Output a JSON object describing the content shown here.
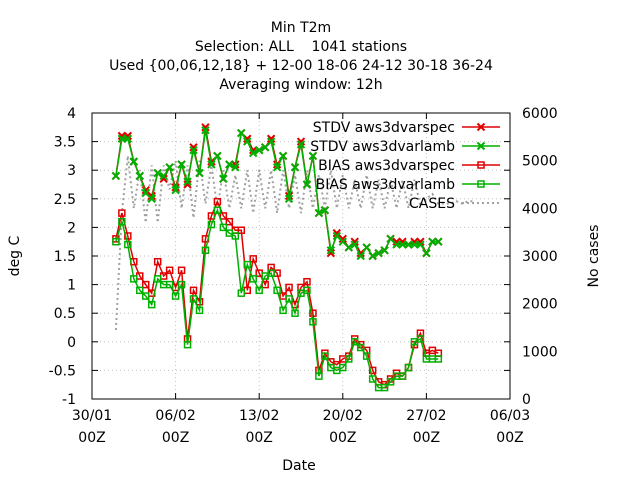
{
  "chart_data": {
    "type": "line",
    "title_lines": [
      "Min T2m",
      "Selection: ALL    1041 stations",
      "Used {00,06,12,18} + 12-00 18-06 24-12 30-18 36-24",
      "Averaging window: 12h"
    ],
    "xlabel": "Date",
    "ylabel": "deg C",
    "y2label": "No cases",
    "x_ticks": [
      {
        "day": 0,
        "line1": "30/01",
        "line2": "00Z"
      },
      {
        "day": 7,
        "line1": "06/02",
        "line2": "00Z"
      },
      {
        "day": 14,
        "line1": "13/02",
        "line2": "00Z"
      },
      {
        "day": 21,
        "line1": "20/02",
        "line2": "00Z"
      },
      {
        "day": 28,
        "line1": "27/02",
        "line2": "00Z"
      },
      {
        "day": 35,
        "line1": "06/03",
        "line2": "00Z"
      }
    ],
    "xlim": [
      0,
      35
    ],
    "ylim": [
      -1,
      4
    ],
    "y_ticks": [
      "-1",
      "-0.5",
      "0",
      "0.5",
      "1",
      "1.5",
      "2",
      "2.5",
      "3",
      "3.5",
      "4"
    ],
    "y2lim": [
      0,
      6000
    ],
    "y2_ticks": [
      "0",
      "1000",
      "2000",
      "3000",
      "4000",
      "5000",
      "6000"
    ],
    "grid": true,
    "legend_position": "top-right",
    "series": [
      {
        "name": "STDV aws3dvarspec",
        "color": "#e00000",
        "marker": "x",
        "axis": "y",
        "x": [
          2.0,
          2.5,
          3.0,
          3.5,
          4.0,
          4.5,
          5.0,
          5.5,
          6.0,
          6.5,
          7.0,
          7.5,
          8.0,
          8.5,
          9.0,
          9.5,
          10.0,
          10.5,
          11.0,
          11.5,
          12.0,
          12.5,
          13.0,
          13.5,
          14.0,
          14.5,
          15.0,
          15.5,
          16.0,
          16.5,
          17.0,
          17.5,
          18.0,
          18.5,
          19.0,
          19.5,
          20.0,
          20.5,
          21.0,
          21.5,
          22.0,
          22.5,
          23.0,
          23.5,
          24.0,
          24.5,
          25.0,
          25.5,
          26.0,
          26.5,
          27.0,
          27.5,
          28.0,
          28.5,
          29.0
        ],
        "y": [
          2.9,
          3.6,
          3.6,
          3.15,
          2.9,
          2.65,
          2.55,
          2.95,
          2.85,
          3.05,
          2.7,
          3.1,
          2.75,
          3.4,
          2.95,
          3.75,
          3.15,
          3.25,
          2.85,
          3.1,
          3.1,
          3.65,
          3.55,
          3.35,
          3.35,
          3.4,
          3.55,
          3.1,
          3.25,
          2.55,
          3.05,
          3.5,
          2.75,
          3.25,
          2.25,
          2.3,
          1.55,
          1.9,
          1.8,
          1.65,
          1.75,
          1.55,
          1.65,
          1.5,
          1.55,
          1.6,
          1.8,
          1.75,
          1.75,
          1.7,
          1.75,
          1.75,
          1.55,
          1.75,
          1.75
        ]
      },
      {
        "name": "STDV aws3dvarlamb",
        "color": "#00b000",
        "marker": "x",
        "axis": "y",
        "x": [
          2.0,
          2.5,
          3.0,
          3.5,
          4.0,
          4.5,
          5.0,
          5.5,
          6.0,
          6.5,
          7.0,
          7.5,
          8.0,
          8.5,
          9.0,
          9.5,
          10.0,
          10.5,
          11.0,
          11.5,
          12.0,
          12.5,
          13.0,
          13.5,
          14.0,
          14.5,
          15.0,
          15.5,
          16.0,
          16.5,
          17.0,
          17.5,
          18.0,
          18.5,
          19.0,
          19.5,
          20.0,
          20.5,
          21.0,
          21.5,
          22.0,
          22.5,
          23.0,
          23.5,
          24.0,
          24.5,
          25.0,
          25.5,
          26.0,
          26.5,
          27.0,
          27.5,
          28.0,
          28.5,
          29.0
        ],
        "y": [
          2.9,
          3.55,
          3.55,
          3.15,
          2.9,
          2.6,
          2.5,
          2.95,
          2.9,
          3.05,
          2.65,
          3.1,
          2.8,
          3.35,
          2.95,
          3.7,
          3.1,
          3.25,
          2.85,
          3.1,
          3.05,
          3.65,
          3.5,
          3.3,
          3.35,
          3.4,
          3.5,
          3.05,
          3.25,
          2.5,
          3.05,
          3.45,
          2.75,
          3.25,
          2.25,
          2.3,
          1.6,
          1.85,
          1.75,
          1.65,
          1.7,
          1.5,
          1.65,
          1.5,
          1.55,
          1.6,
          1.8,
          1.7,
          1.7,
          1.7,
          1.7,
          1.7,
          1.55,
          1.75,
          1.75
        ]
      },
      {
        "name": "BIAS aws3dvarspec",
        "color": "#e00000",
        "marker": "square",
        "axis": "y",
        "x": [
          2.0,
          2.5,
          3.0,
          3.5,
          4.0,
          4.5,
          5.0,
          5.5,
          6.0,
          6.5,
          7.0,
          7.5,
          8.0,
          8.5,
          9.0,
          9.5,
          10.0,
          10.5,
          11.0,
          11.5,
          12.0,
          12.5,
          13.0,
          13.5,
          14.0,
          14.5,
          15.0,
          15.5,
          16.0,
          16.5,
          17.0,
          17.5,
          18.0,
          18.5,
          19.0,
          19.5,
          20.0,
          20.5,
          21.0,
          21.5,
          22.0,
          22.5,
          23.0,
          23.5,
          24.0,
          24.5,
          25.0,
          25.5,
          26.0,
          26.5,
          27.0,
          27.5,
          28.0,
          28.5,
          29.0
        ],
        "y": [
          1.8,
          2.25,
          1.85,
          1.4,
          1.15,
          1.0,
          0.85,
          1.4,
          1.15,
          1.25,
          0.95,
          1.25,
          0.05,
          0.9,
          0.7,
          1.8,
          2.2,
          2.45,
          2.2,
          2.1,
          1.95,
          1.95,
          0.9,
          1.45,
          1.2,
          1.0,
          1.3,
          1.2,
          0.8,
          0.95,
          0.65,
          0.95,
          1.05,
          0.5,
          -0.5,
          -0.2,
          -0.35,
          -0.4,
          -0.3,
          -0.25,
          0.05,
          -0.05,
          -0.15,
          -0.5,
          -0.7,
          -0.75,
          -0.65,
          -0.55,
          -0.6,
          -0.45,
          -0.05,
          0.15,
          -0.2,
          -0.15,
          -0.2
        ]
      },
      {
        "name": "BIAS aws3dvarlamb",
        "color": "#00b000",
        "marker": "square",
        "axis": "y",
        "x": [
          2.0,
          2.5,
          3.0,
          3.5,
          4.0,
          4.5,
          5.0,
          5.5,
          6.0,
          6.5,
          7.0,
          7.5,
          8.0,
          8.5,
          9.0,
          9.5,
          10.0,
          10.5,
          11.0,
          11.5,
          12.0,
          12.5,
          13.0,
          13.5,
          14.0,
          14.5,
          15.0,
          15.5,
          16.0,
          16.5,
          17.0,
          17.5,
          18.0,
          18.5,
          19.0,
          19.5,
          20.0,
          20.5,
          21.0,
          21.5,
          22.0,
          22.5,
          23.0,
          23.5,
          24.0,
          24.5,
          25.0,
          25.5,
          26.0,
          26.5,
          27.0,
          27.5,
          28.0,
          28.5,
          29.0
        ],
        "y": [
          1.75,
          2.1,
          1.7,
          1.1,
          0.9,
          0.8,
          0.65,
          1.1,
          1.0,
          1.0,
          0.8,
          1.0,
          -0.05,
          0.75,
          0.55,
          1.6,
          2.05,
          2.3,
          2.0,
          1.9,
          1.85,
          0.85,
          1.35,
          1.1,
          0.9,
          1.15,
          1.2,
          0.9,
          0.55,
          0.75,
          0.5,
          0.85,
          0.9,
          0.35,
          -0.6,
          -0.25,
          -0.45,
          -0.5,
          -0.45,
          -0.3,
          0.0,
          -0.1,
          -0.25,
          -0.65,
          -0.8,
          -0.8,
          -0.7,
          -0.6,
          -0.6,
          -0.45,
          0.0,
          0.05,
          -0.3,
          -0.3,
          -0.3
        ]
      },
      {
        "name": "CASES",
        "color": "#a0a0a0",
        "marker": "none",
        "style": "dotted",
        "axis": "y2",
        "x": [
          2.0,
          2.5,
          3.0,
          3.5,
          4.0,
          4.5,
          5.0,
          5.5,
          6.0,
          6.5,
          7.0,
          7.5,
          8.0,
          8.5,
          9.0,
          9.5,
          10.0,
          10.5,
          11.0,
          11.5,
          12.0,
          12.5,
          13.0,
          13.5,
          14.0,
          14.5,
          15.0,
          15.5,
          16.0,
          16.5,
          17.0,
          17.5,
          18.0,
          18.5,
          19.0,
          19.5,
          20.0,
          20.5,
          21.0,
          21.5,
          22.0,
          22.5,
          23.0,
          23.5,
          24.0,
          24.5,
          25.0,
          25.5,
          26.0,
          26.5,
          27.0,
          27.5,
          28.0,
          28.5,
          29.0,
          29.5,
          30.0,
          30.5,
          31.0,
          31.5,
          32.0
        ],
        "y": [
          1450,
          3900,
          5100,
          4000,
          4800,
          3700,
          4900,
          3700,
          4900,
          4400,
          5000,
          4000,
          4900,
          3800,
          5000,
          4100,
          4900,
          4000,
          4800,
          4000,
          4700,
          4000,
          4800,
          3900,
          4800,
          4000,
          4800,
          3900,
          4800,
          4000,
          4700,
          3900,
          4800,
          4000,
          4700,
          4000,
          4800,
          4000,
          4700,
          4000,
          4600,
          4000,
          4700,
          4000,
          4600,
          4000,
          4600,
          4000,
          4600,
          4000,
          4600,
          4050,
          4200,
          4300,
          4100,
          4100,
          4100,
          4150,
          4100,
          4150,
          4150
        ]
      }
    ]
  }
}
